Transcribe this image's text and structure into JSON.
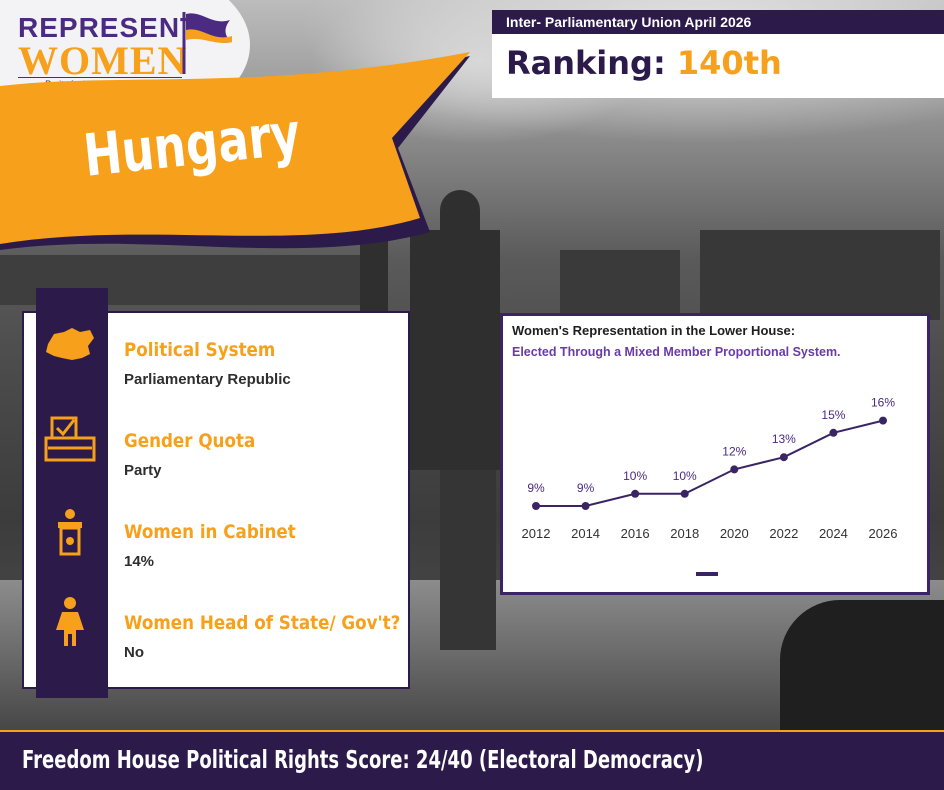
{
  "brand": {
    "line1": "REPRESENT",
    "line2": "WOMEN",
    "tagline": "Parity for Women in Politics",
    "purple": "#4b2a82",
    "orange": "#f6a01b"
  },
  "header": {
    "country": "Hungary",
    "source": "Inter- Parliamentary Union April 2026",
    "ranking_label": "Ranking:",
    "ranking_value": "140th"
  },
  "info": [
    {
      "icon": "hungary-map-icon",
      "label": "Political System",
      "value": "Parliamentary Republic"
    },
    {
      "icon": "ballot-box-icon",
      "label": "Gender Quota",
      "value": "Party"
    },
    {
      "icon": "podium-icon",
      "label": "Women in Cabinet",
      "value": "14%"
    },
    {
      "icon": "woman-figure-icon",
      "label": "Women Head of State/ Gov't?",
      "value": "No"
    }
  ],
  "chart_data": {
    "type": "line",
    "title": "Women's Representation in the Lower House:",
    "subtitle": "Elected Through a Mixed Member Proportional  System.",
    "categories": [
      "2012",
      "2014",
      "2016",
      "2018",
      "2020",
      "2022",
      "2024",
      "2026"
    ],
    "values": [
      9,
      9,
      10,
      10,
      12,
      13,
      15,
      16
    ],
    "value_labels": [
      "9%",
      "9%",
      "10%",
      "10%",
      "12%",
      "13%",
      "15%",
      "16%"
    ],
    "series_color": "#3a2464",
    "legend": "bottom-center",
    "grid": false
  },
  "footer": {
    "text": "Freedom House Political Rights Score: 24/40 (Electoral Democracy)"
  }
}
